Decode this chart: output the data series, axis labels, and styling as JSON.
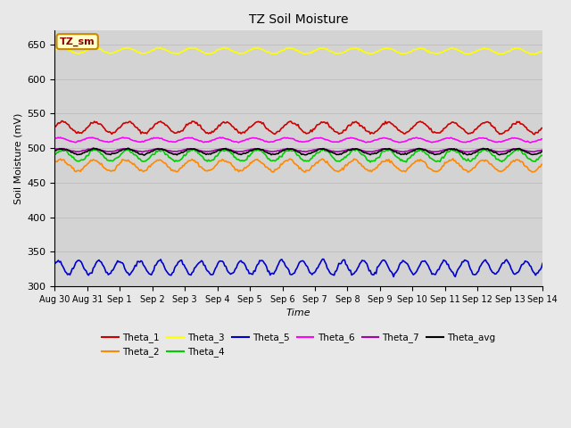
{
  "title": "TZ Soil Moisture",
  "xlabel": "Time",
  "ylabel": "Soil Moisture (mV)",
  "label_box": "TZ_sm",
  "ylim": [
    300,
    670
  ],
  "yticks": [
    300,
    350,
    400,
    450,
    500,
    550,
    600,
    650
  ],
  "num_points": 420,
  "background_color": "#e8e8e8",
  "plot_bg_color": "#d3d3d3",
  "series": {
    "Theta_1": {
      "color": "#cc0000",
      "base": 530,
      "trend": -0.8,
      "amp": 8,
      "freq": 1.0,
      "phase": 0.0
    },
    "Theta_2": {
      "color": "#ff8800",
      "base": 475,
      "trend": -0.5,
      "amp": 8,
      "freq": 1.0,
      "phase": 0.3
    },
    "Theta_3": {
      "color": "#ffff00",
      "base": 641,
      "trend": -0.8,
      "amp": 4,
      "freq": 1.0,
      "phase": 0.2
    },
    "Theta_4": {
      "color": "#00cc00",
      "base": 489,
      "trend": 0.2,
      "amp": 8,
      "freq": 1.0,
      "phase": 0.1
    },
    "Theta_5": {
      "color": "#0000cc",
      "base": 327,
      "trend": 0.3,
      "amp": 10,
      "freq": 1.6,
      "phase": 0.5
    },
    "Theta_6": {
      "color": "#ff00ff",
      "base": 512,
      "trend": -0.5,
      "amp": 3,
      "freq": 1.0,
      "phase": 0.8
    },
    "Theta_7": {
      "color": "#aa00aa",
      "base": 497,
      "trend": -0.3,
      "amp": 2,
      "freq": 1.0,
      "phase": 0.4
    },
    "Theta_avg": {
      "color": "#000000",
      "base": 495,
      "trend": -0.2,
      "amp": 4,
      "freq": 1.0,
      "phase": 0.2
    }
  },
  "x_tick_labels": [
    "Aug 30",
    "Aug 31",
    "Sep 1",
    "Sep 2",
    "Sep 3",
    "Sep 4",
    "Sep 5",
    "Sep 6",
    "Sep 7",
    "Sep 8",
    "Sep 9",
    "Sep 10",
    "Sep 11",
    "Sep 12",
    "Sep 13",
    "Sep 14"
  ],
  "legend_row1": [
    "Theta_1",
    "Theta_2",
    "Theta_3",
    "Theta_4",
    "Theta_5",
    "Theta_6"
  ],
  "legend_row2": [
    "Theta_7",
    "Theta_avg"
  ]
}
